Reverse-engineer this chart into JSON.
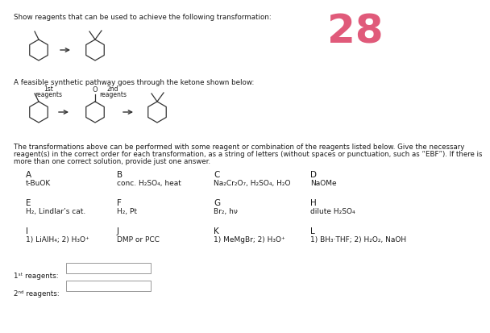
{
  "title_text": "Show reagents that can be used to achieve the following transformation:",
  "number": "28",
  "number_color": "#e05a7a",
  "pathway_text": "A feasible synthetic pathway goes through the ketone shown below:",
  "body_line1": "The transformations above can be performed with some reagent or combination of the reagents listed below. Give the necessary",
  "body_line2": "reagent(s) in the correct order for each transformation, as a string of letters (without spaces or punctuation, such as “EBF”). If there is",
  "body_line3": "more than one correct solution, provide just one answer.",
  "reagents": [
    {
      "label": "A",
      "value": "t-BuOK"
    },
    {
      "label": "B",
      "value": "conc. H₂SO₄, heat"
    },
    {
      "label": "C",
      "value": "Na₂Cr₂O₇, H₂SO₄, H₂O"
    },
    {
      "label": "D",
      "value": "NaOMe"
    },
    {
      "label": "E",
      "value": "H₂, Lindlar’s cat."
    },
    {
      "label": "F",
      "value": "H₂, Pt"
    },
    {
      "label": "G",
      "value": "Br₂, hν"
    },
    {
      "label": "H",
      "value": "dilute H₂SO₄"
    },
    {
      "label": "I",
      "value": "1) LiAlH₄; 2) H₃O⁺"
    },
    {
      "label": "J",
      "value": "DMP or PCC"
    },
    {
      "label": "K",
      "value": "1) MeMgBr; 2) H₃O⁺"
    },
    {
      "label": "L",
      "value": "1) BH₃·THF; 2) H₂O₂, NaOH"
    }
  ],
  "bg_color": "#ffffff",
  "text_color": "#1a1a1a",
  "label_fontsize": 7.5,
  "value_fontsize": 6.5,
  "body_fontsize": 6.2
}
